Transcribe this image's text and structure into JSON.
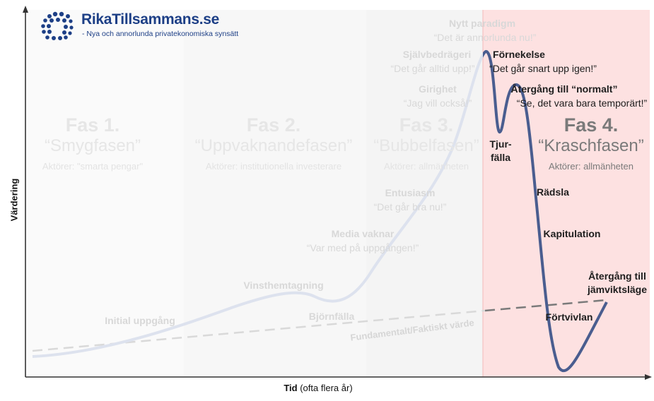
{
  "logo": {
    "title": "RikaTillsammans.se",
    "subtitle": "- Nya och annorlunda privatekonomiska synsätt",
    "color": "#1d3f86"
  },
  "axes": {
    "ylabel": "Värdering",
    "xlabel_bold": "Tid",
    "xlabel_rest": " (ofta flera år)"
  },
  "phases": [
    {
      "title": "Fas 1.",
      "name": "“Smygfasen”",
      "actors": "Aktörer: \"smarta pengar\""
    },
    {
      "title": "Fas 2.",
      "name": "“Uppvaknandefasen”",
      "actors": "Aktörer: institutionella investerare"
    },
    {
      "title": "Fas 3.",
      "name": "“Bubbelfasen”",
      "actors": "Aktörer: allmänheten"
    },
    {
      "title": "Fas 4.",
      "name": "“Kraschfasen”",
      "actors": "Aktörer: allmänheten"
    }
  ],
  "stages": {
    "initial": "Initial uppgång",
    "vinst": "Vinsthemtagning",
    "bjorn": "Björnfälla",
    "media": "Media vaknar",
    "media_q": "“Var med på uppgången!”",
    "entusiasm": "Entusiasm",
    "entusiasm_q": "“Det går bra nu!”",
    "girighet": "Girighet",
    "girighet_q": "“Jag vill också!”",
    "sjalv": "Självbedrägeri",
    "sjalv_q": "“Det går alltid upp!”",
    "nytt": "Nytt paradigm",
    "nytt_q": "“Det är annorlunda nu!”",
    "fornekelse": "Förnekelse",
    "fornekelse_q": "“Det går snart upp igen!”",
    "atergang_normalt": "Återgång till “normalt”",
    "atergang_normalt_q": "“Se, det vara bara temporärt!”",
    "tjur1": "Tjur-",
    "tjur2": "fälla",
    "radsla": "Rädsla",
    "kapitulation": "Kapitulation",
    "fortvivlan": "Förtvivlan",
    "jamvikt1": "Återgång till",
    "jamvikt2": "jämviktsläge"
  },
  "fundamental_label": "Fundamentalt/Faktiskt värde",
  "colors": {
    "crash_zone": "#fde1e1",
    "crash_curve": "#4a5d8f",
    "early_curve": "#dde2ee",
    "fundamental_line": "#d9d9d9",
    "fundamental_crash": "#7a7a7a"
  }
}
